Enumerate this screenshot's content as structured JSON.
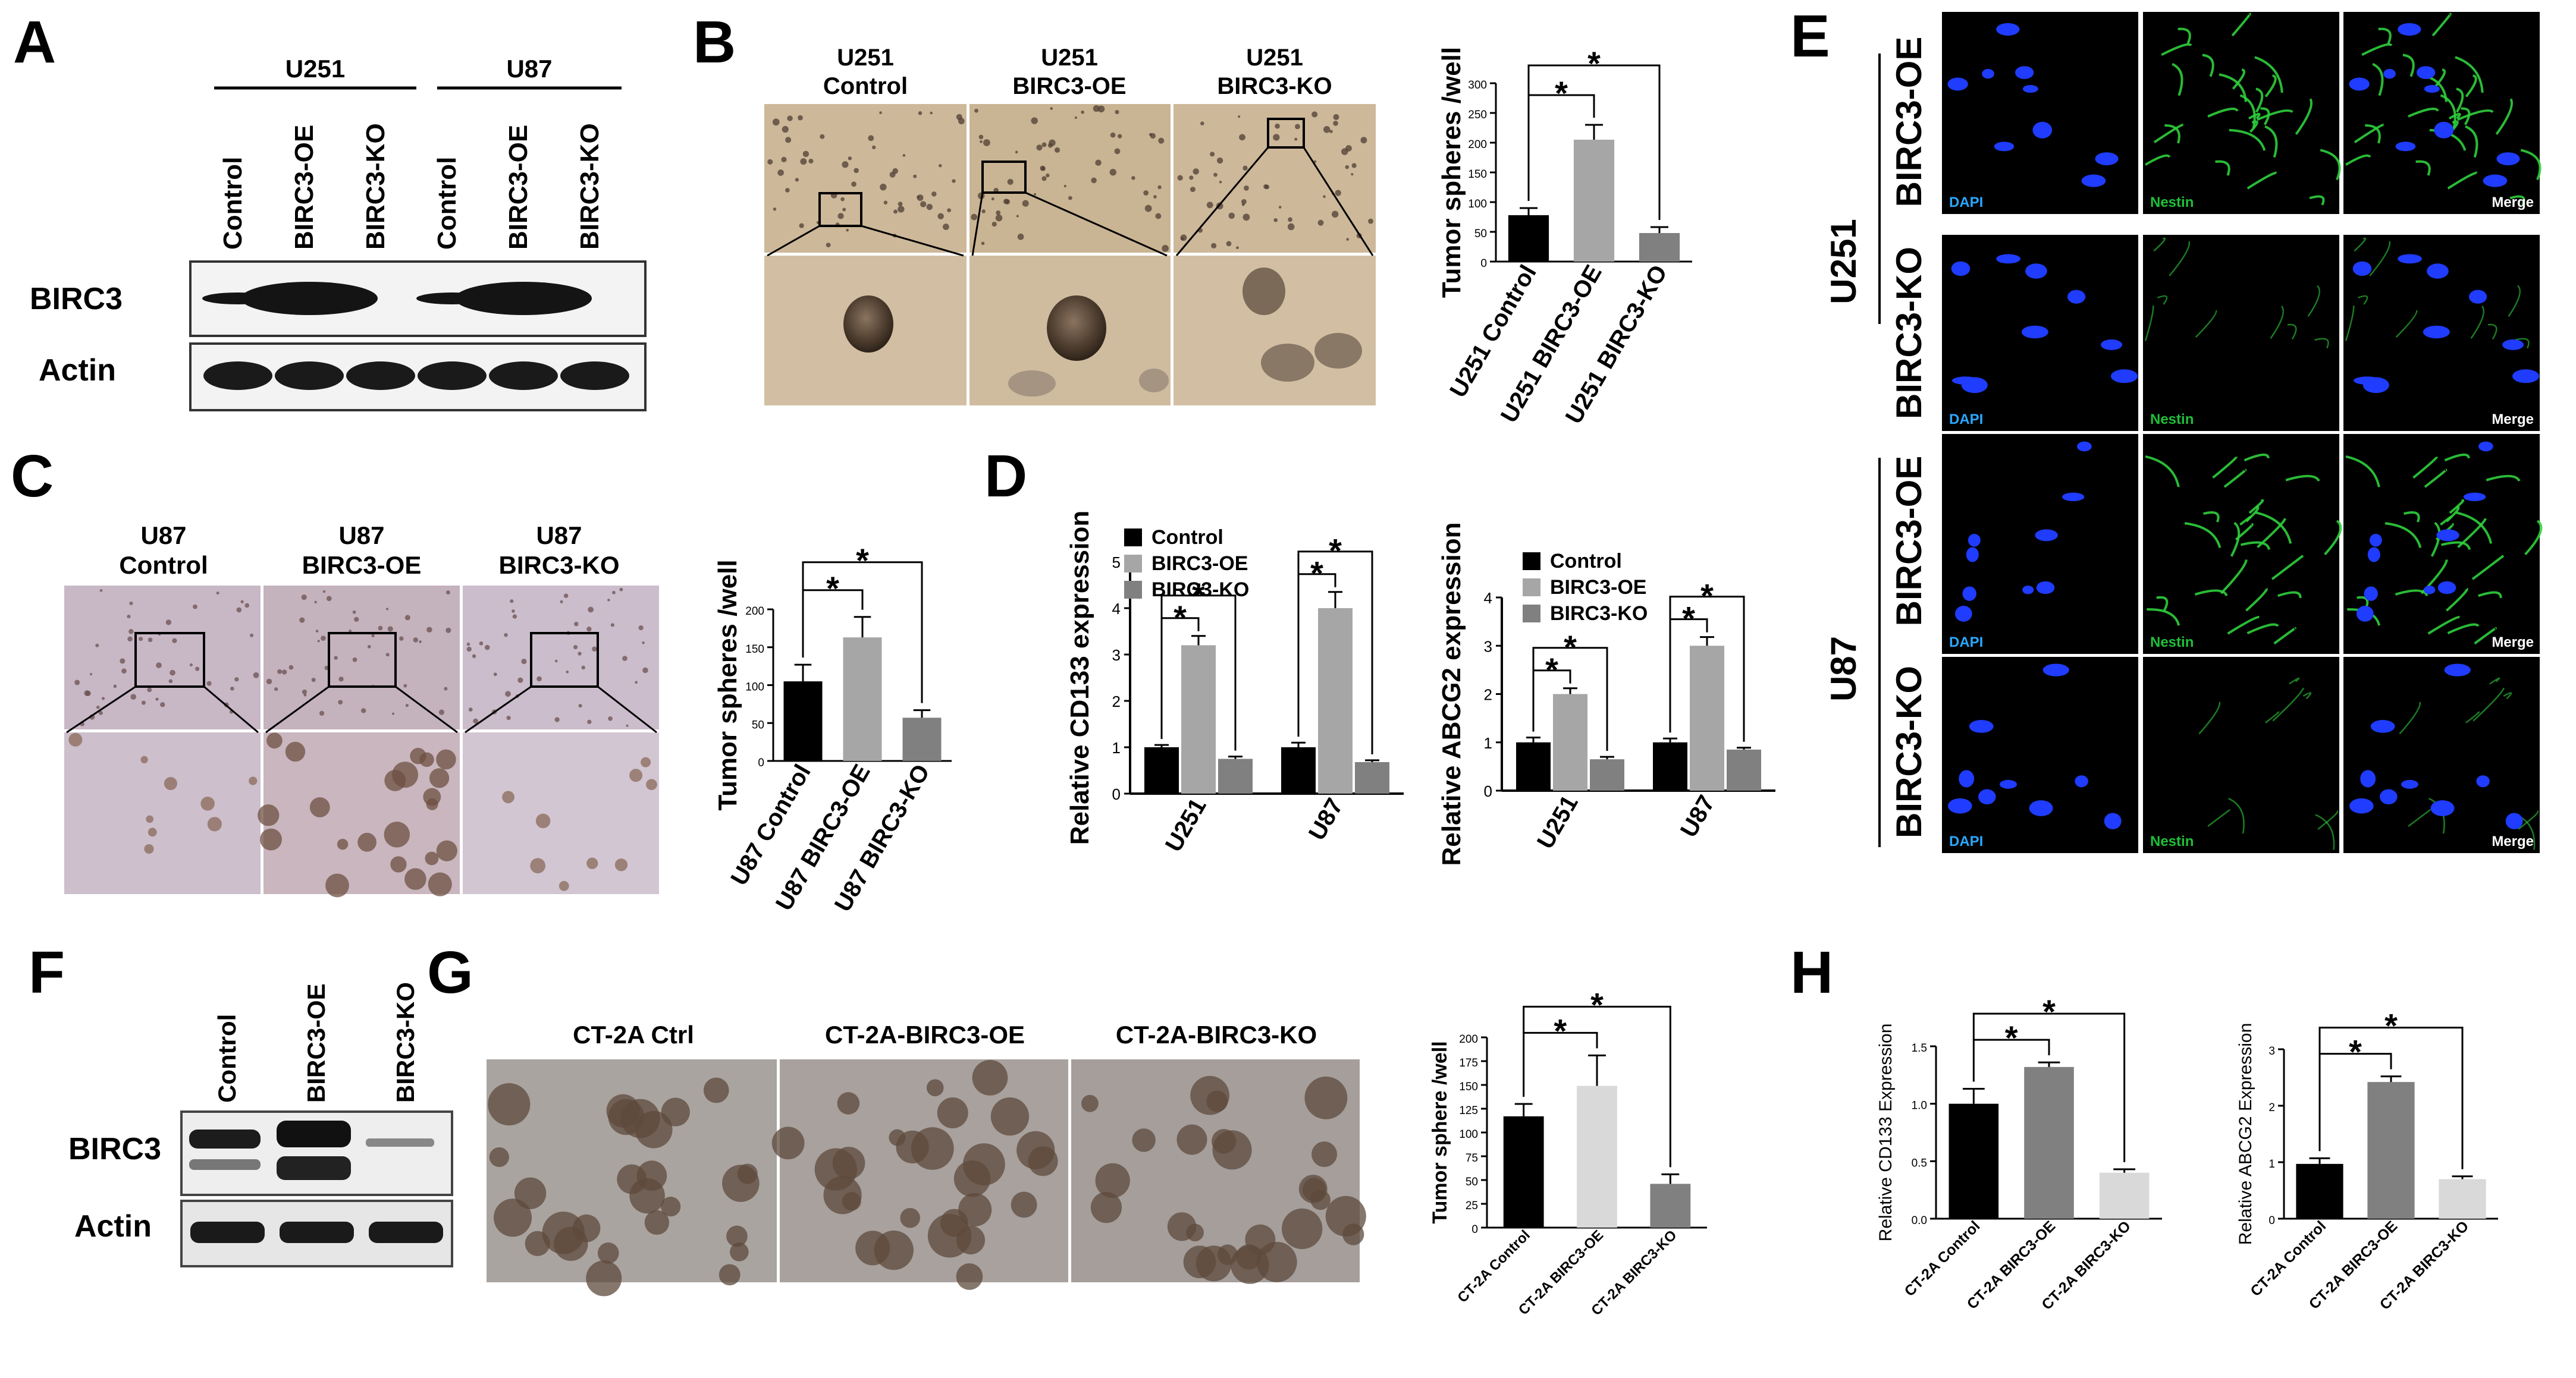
{
  "panels": {
    "a": {
      "label": "A",
      "groups": [
        "U251",
        "U87"
      ],
      "lanes": [
        "Control",
        "BIRC3-OE",
        "BIRC3-KO",
        "Control",
        "BIRC3-OE",
        "BIRC3-KO"
      ],
      "rows": [
        "BIRC3",
        "Actin"
      ]
    },
    "b": {
      "label": "B",
      "headers": [
        {
          "line1": "U251",
          "line2": "Control"
        },
        {
          "line1": "U251",
          "line2": "BIRC3-OE"
        },
        {
          "line1": "U251",
          "line2": "BIRC3-KO"
        }
      ]
    },
    "c": {
      "label": "C",
      "headers": [
        {
          "line1": "U87",
          "line2": "Control"
        },
        {
          "line1": "U87",
          "line2": "BIRC3-OE"
        },
        {
          "line1": "U87",
          "line2": "BIRC3-KO"
        }
      ]
    },
    "d": {
      "label": "D"
    },
    "e": {
      "label": "E",
      "groups": [
        "U251",
        "U87"
      ],
      "rows": [
        "BIRC3-OE",
        "BIRC3-KO",
        "BIRC3-OE",
        "BIRC3-KO"
      ],
      "channels": [
        "DAPI",
        "Nestin",
        "Merge"
      ],
      "channel_colors": [
        "#2aa8ff",
        "#1fbf3a",
        "#ffffff"
      ]
    },
    "f": {
      "label": "F",
      "lanes": [
        "Control",
        "BIRC3-OE",
        "BIRC3-KO"
      ],
      "rows": [
        "BIRC3",
        "Actin"
      ]
    },
    "g": {
      "label": "G",
      "headers": [
        "CT-2A Ctrl",
        "CT-2A-BIRC3-OE",
        "CT-2A-BIRC3-KO"
      ]
    },
    "h": {
      "label": "H"
    }
  },
  "chart_data": [
    {
      "panel": "B",
      "type": "bar",
      "categories": [
        "U251 Control",
        "U251 BIRC3-OE",
        "U251 BIRC3-KO"
      ],
      "values": [
        78,
        205,
        48
      ],
      "errors": [
        12,
        25,
        10
      ],
      "colors": [
        "#000000",
        "#a6a6a6",
        "#808080"
      ],
      "ylabel": "Tumor spheres /well",
      "ylim": [
        0,
        300
      ],
      "yticks": [
        "0",
        "50",
        "100",
        "150",
        "200",
        "250",
        "300"
      ],
      "significance": [
        "*",
        "*"
      ]
    },
    {
      "panel": "C",
      "type": "bar",
      "categories": [
        "U87 Control",
        "U87 BIRC3-OE",
        "U87 BIRC3-KO"
      ],
      "values": [
        105,
        163,
        57
      ],
      "errors": [
        22,
        27,
        10
      ],
      "colors": [
        "#000000",
        "#a6a6a6",
        "#808080"
      ],
      "ylabel": "Tumor spheres /well",
      "ylim": [
        0,
        200
      ],
      "yticks": [
        "0",
        "50",
        "100",
        "150",
        "200"
      ],
      "significance": [
        "*",
        "*"
      ]
    },
    {
      "panel": "D",
      "type": "bar",
      "categories": [
        "U251",
        "U87"
      ],
      "series": [
        {
          "name": "Control",
          "values": [
            1.0,
            1.0
          ],
          "errors": [
            0.05,
            0.1
          ]
        },
        {
          "name": "BIRC3-OE",
          "values": [
            3.2,
            4.0
          ],
          "errors": [
            0.2,
            0.35
          ]
        },
        {
          "name": "BIRC3-KO",
          "values": [
            0.75,
            0.68
          ],
          "errors": [
            0.05,
            0.04
          ]
        }
      ],
      "colors": [
        "#000000",
        "#a6a6a6",
        "#808080"
      ],
      "ylabel": "Relative CD133 expression",
      "ylim": [
        0,
        5
      ],
      "yticks": [
        "0",
        "1",
        "2",
        "3",
        "4",
        "5"
      ],
      "significance": [
        "*",
        "*"
      ]
    },
    {
      "panel": "D",
      "type": "bar",
      "categories": [
        "U251",
        "U87"
      ],
      "series": [
        {
          "name": "Control",
          "values": [
            1.0,
            1.0
          ],
          "errors": [
            0.1,
            0.08
          ]
        },
        {
          "name": "BIRC3-OE",
          "values": [
            2.0,
            3.0
          ],
          "errors": [
            0.12,
            0.18
          ]
        },
        {
          "name": "BIRC3-KO",
          "values": [
            0.65,
            0.85
          ],
          "errors": [
            0.05,
            0.04
          ]
        }
      ],
      "colors": [
        "#000000",
        "#a6a6a6",
        "#808080"
      ],
      "ylabel": "Relative ABCG2 expression",
      "ylim": [
        0,
        4
      ],
      "yticks": [
        "0",
        "1",
        "2",
        "3",
        "4"
      ],
      "significance": [
        "*",
        "*"
      ]
    },
    {
      "panel": "G",
      "type": "bar",
      "categories": [
        "CT-2A Control",
        "CT-2A BIRC3-OE",
        "CT-2A BIRC3-KO"
      ],
      "values": [
        117,
        149,
        46
      ],
      "errors": [
        13,
        32,
        10
      ],
      "colors": [
        "#000000",
        "#d9d9d9",
        "#808080"
      ],
      "ylabel": "Tumor sphere /well",
      "ylim": [
        0,
        200
      ],
      "yticks": [
        "0",
        "25",
        "50",
        "75",
        "100",
        "125",
        "150",
        "175",
        "200"
      ],
      "significance": [
        "*",
        "*"
      ]
    },
    {
      "panel": "H",
      "type": "bar",
      "categories": [
        "CT-2A Control",
        "CT-2A BIRC3-OE",
        "CT-2A BIRC3-KO"
      ],
      "values": [
        1.0,
        1.32,
        0.4
      ],
      "errors": [
        0.13,
        0.04,
        0.03
      ],
      "colors": [
        "#000000",
        "#808080",
        "#d9d9d9"
      ],
      "ylabel": "Relative CD133 Expression",
      "ylim": [
        0,
        1.5
      ],
      "yticks": [
        "0.0",
        "0.5",
        "1.0",
        "1.5"
      ],
      "significance": [
        "*",
        "*"
      ]
    },
    {
      "panel": "H",
      "type": "bar",
      "categories": [
        "CT-2A Control",
        "CT-2A BIRC3-OE",
        "CT-2A BIRC3-KO"
      ],
      "values": [
        0.97,
        2.42,
        0.7
      ],
      "errors": [
        0.1,
        0.1,
        0.05
      ],
      "colors": [
        "#000000",
        "#808080",
        "#d9d9d9"
      ],
      "ylabel": "Relative ABCG2 Expression",
      "ylim": [
        0,
        3
      ],
      "yticks": [
        "0",
        "1",
        "2",
        "3"
      ],
      "significance": [
        "*",
        "*"
      ]
    }
  ]
}
